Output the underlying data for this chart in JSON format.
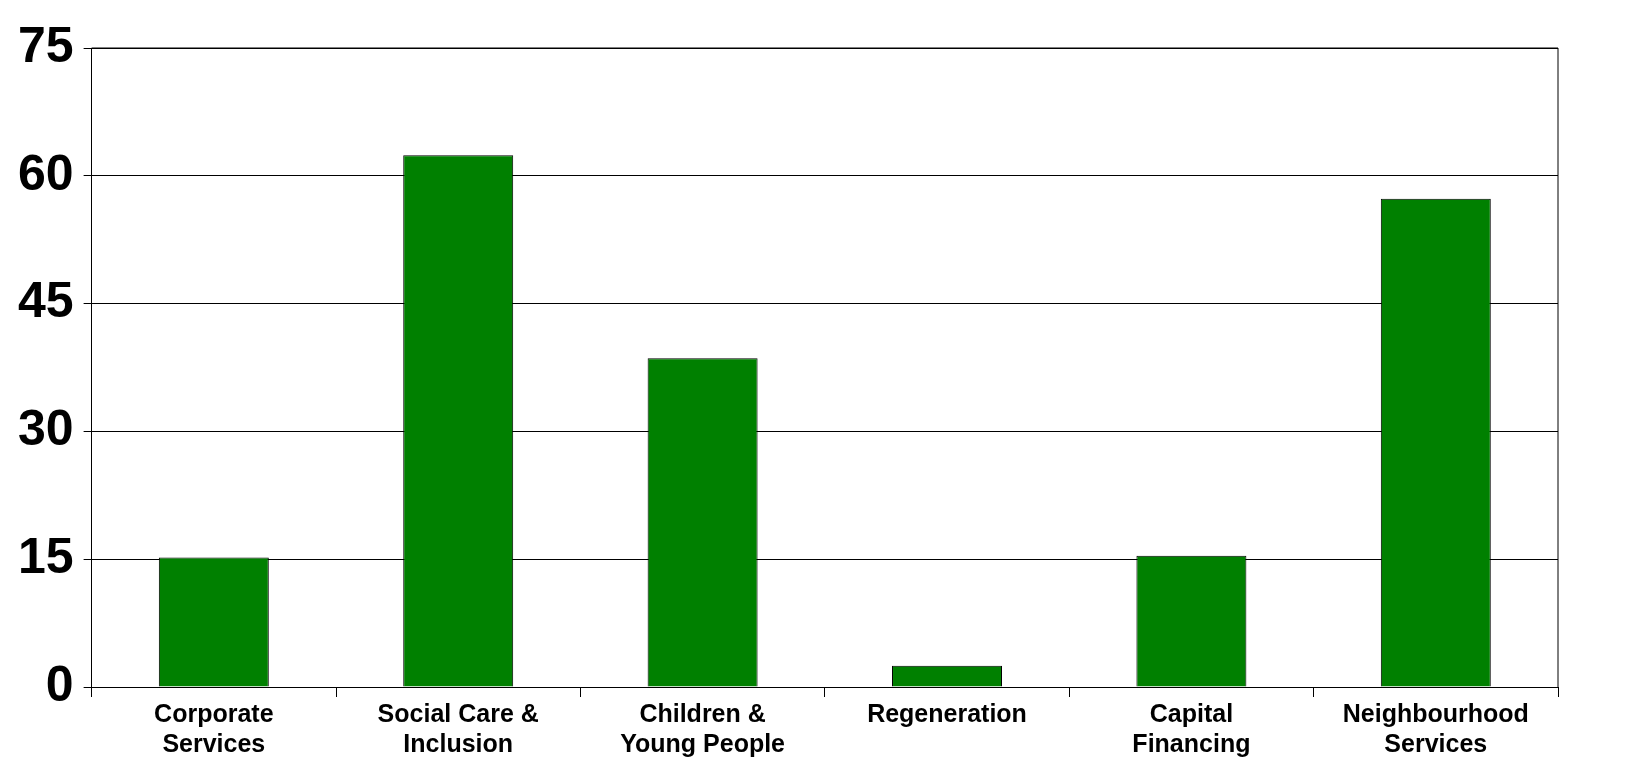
{
  "chart_data": {
    "type": "bar",
    "categories": [
      "Corporate\nServices",
      "Social Care &\nInclusion",
      "Children &\nYoung People",
      "Regeneration",
      "Capital\nFinancing",
      "Neighbourhood\nServices"
    ],
    "values": [
      15.2,
      62.4,
      38.6,
      2.5,
      15.4,
      57.3
    ],
    "color": "#008000",
    "ylim": [
      0,
      75
    ],
    "yticks": [
      0,
      15,
      30,
      45,
      60,
      75
    ],
    "grid": "y",
    "legend": false
  }
}
